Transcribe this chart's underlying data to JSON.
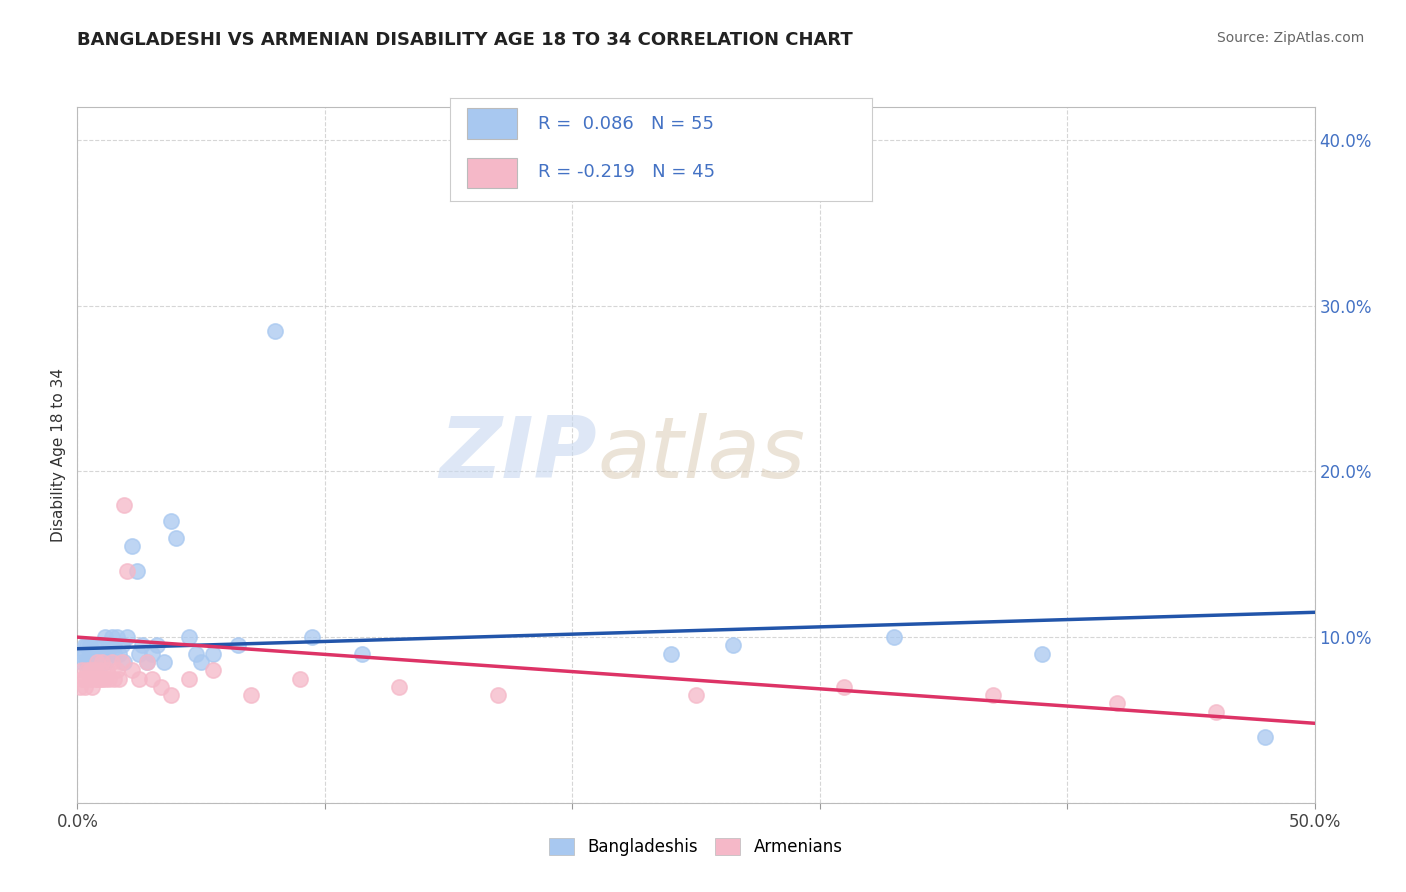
{
  "title": "BANGLADESHI VS ARMENIAN DISABILITY AGE 18 TO 34 CORRELATION CHART",
  "source": "Source: ZipAtlas.com",
  "ylabel": "Disability Age 18 to 34",
  "xlim": [
    0.0,
    0.5
  ],
  "ylim": [
    0.0,
    0.42
  ],
  "ytick_positions": [
    0.0,
    0.1,
    0.2,
    0.3,
    0.4
  ],
  "ytick_labels": [
    "",
    "10.0%",
    "20.0%",
    "30.0%",
    "40.0%"
  ],
  "xtick_positions": [
    0.0,
    0.1,
    0.2,
    0.3,
    0.4,
    0.5
  ],
  "xtick_labels": [
    "0.0%",
    "",
    "",
    "",
    "",
    "50.0%"
  ],
  "legend_labels": [
    "Bangladeshis",
    "Armenians"
  ],
  "r_bangladeshi": 0.086,
  "n_bangladeshi": 55,
  "r_armenian": -0.219,
  "n_armenian": 45,
  "color_bangladeshi": "#a8c8f0",
  "color_armenian": "#f5b8c8",
  "line_color_bangladeshi": "#2255aa",
  "line_color_armenian": "#dd3366",
  "watermark_zip": "ZIP",
  "watermark_atlas": "atlas",
  "background_color": "#ffffff",
  "grid_color": "#cccccc",
  "bangladeshi_x": [
    0.001,
    0.002,
    0.003,
    0.003,
    0.004,
    0.004,
    0.005,
    0.005,
    0.005,
    0.006,
    0.006,
    0.007,
    0.007,
    0.007,
    0.008,
    0.008,
    0.009,
    0.009,
    0.01,
    0.01,
    0.011,
    0.011,
    0.012,
    0.013,
    0.014,
    0.015,
    0.015,
    0.016,
    0.017,
    0.018,
    0.019,
    0.02,
    0.022,
    0.024,
    0.025,
    0.026,
    0.028,
    0.03,
    0.032,
    0.035,
    0.038,
    0.04,
    0.045,
    0.048,
    0.05,
    0.055,
    0.065,
    0.08,
    0.095,
    0.115,
    0.24,
    0.265,
    0.33,
    0.39,
    0.48
  ],
  "bangladeshi_y": [
    0.09,
    0.085,
    0.09,
    0.095,
    0.085,
    0.095,
    0.09,
    0.085,
    0.095,
    0.085,
    0.09,
    0.085,
    0.09,
    0.095,
    0.085,
    0.09,
    0.085,
    0.09,
    0.09,
    0.095,
    0.085,
    0.1,
    0.09,
    0.095,
    0.1,
    0.09,
    0.095,
    0.1,
    0.09,
    0.095,
    0.085,
    0.1,
    0.155,
    0.14,
    0.09,
    0.095,
    0.085,
    0.09,
    0.095,
    0.085,
    0.17,
    0.16,
    0.1,
    0.09,
    0.085,
    0.09,
    0.095,
    0.285,
    0.1,
    0.09,
    0.09,
    0.095,
    0.1,
    0.09,
    0.04
  ],
  "armenian_x": [
    0.001,
    0.002,
    0.002,
    0.003,
    0.003,
    0.004,
    0.005,
    0.005,
    0.006,
    0.006,
    0.007,
    0.007,
    0.008,
    0.008,
    0.009,
    0.009,
    0.01,
    0.01,
    0.011,
    0.012,
    0.013,
    0.014,
    0.015,
    0.016,
    0.017,
    0.018,
    0.019,
    0.02,
    0.022,
    0.025,
    0.028,
    0.03,
    0.034,
    0.038,
    0.045,
    0.055,
    0.07,
    0.09,
    0.13,
    0.17,
    0.25,
    0.31,
    0.37,
    0.42,
    0.46
  ],
  "armenian_y": [
    0.07,
    0.075,
    0.08,
    0.07,
    0.075,
    0.08,
    0.075,
    0.08,
    0.07,
    0.08,
    0.075,
    0.08,
    0.075,
    0.085,
    0.075,
    0.08,
    0.075,
    0.085,
    0.075,
    0.08,
    0.075,
    0.085,
    0.075,
    0.08,
    0.075,
    0.085,
    0.18,
    0.14,
    0.08,
    0.075,
    0.085,
    0.075,
    0.07,
    0.065,
    0.075,
    0.08,
    0.065,
    0.075,
    0.07,
    0.065,
    0.065,
    0.07,
    0.065,
    0.06,
    0.055
  ]
}
